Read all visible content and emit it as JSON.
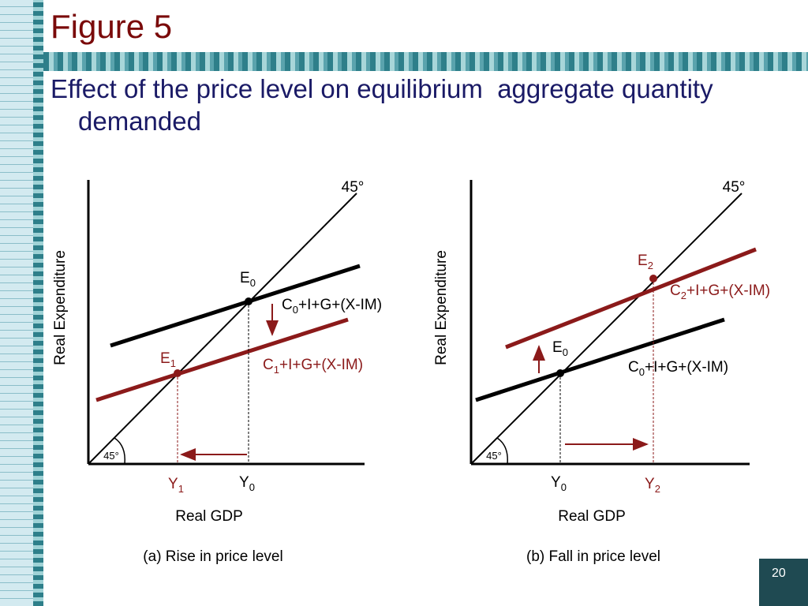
{
  "header": {
    "title": "Figure 5",
    "subtitle": "Effect of the price level on equilibrium  aggregate quantity demanded"
  },
  "panels": [
    {
      "angle_top": "45°",
      "angle_origin": "45°",
      "y_axis_label": "Real Expenditure",
      "x_axis_label": "Real GDP",
      "caption": "(a) Rise in price level",
      "points": [
        {
          "label": "E",
          "sub": "0"
        },
        {
          "label": "E",
          "sub": "1"
        }
      ],
      "curves": [
        {
          "parts": [
            "C",
            "0",
            "+I+G+(X-IM)"
          ]
        },
        {
          "parts": [
            "C",
            "1",
            "+I+G+(X-IM)"
          ]
        }
      ],
      "x_marks": [
        {
          "label": "Y",
          "sub": "1"
        },
        {
          "label": "Y",
          "sub": "0"
        }
      ]
    },
    {
      "angle_top": "45°",
      "angle_origin": "45°",
      "y_axis_label": "Real Expenditure",
      "x_axis_label": "Real GDP",
      "caption": "(b) Fall in price level",
      "points": [
        {
          "label": "E",
          "sub": "2"
        },
        {
          "label": "E",
          "sub": "0"
        }
      ],
      "curves": [
        {
          "parts": [
            "C",
            "2",
            "+I+G+(X-IM)"
          ]
        },
        {
          "parts": [
            "C",
            "0",
            "+I+G+(X-IM)"
          ]
        }
      ],
      "x_marks": [
        {
          "label": "Y",
          "sub": "0"
        },
        {
          "label": "Y",
          "sub": "2"
        }
      ]
    }
  ],
  "page_number": "20"
}
